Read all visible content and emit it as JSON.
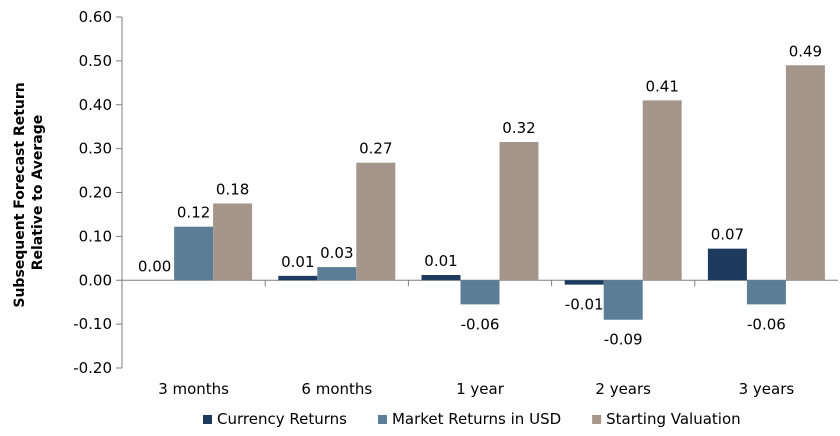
{
  "chart_data": {
    "type": "bar",
    "title": "",
    "ylabel": "Subsequent Forecast Return Relative to Average",
    "ylabel_lines": [
      "Subsequent Forecast Return",
      "Relative to Average"
    ],
    "xlabel": "",
    "ylim": [
      -0.2,
      0.6
    ],
    "y_ticks": [
      -0.2,
      -0.1,
      0.0,
      0.1,
      0.2,
      0.3,
      0.4,
      0.5,
      0.6
    ],
    "y_tick_labels": [
      "-0.20",
      "-0.10",
      "0.00",
      "0.10",
      "0.20",
      "0.30",
      "0.40",
      "0.50",
      "0.60"
    ],
    "grid": false,
    "legend_position": "bottom",
    "categories": [
      "3 months",
      "6 months",
      "1 year",
      "2 years",
      "3 years"
    ],
    "series": [
      {
        "name": "Currency Returns",
        "color": "#1f3a5f",
        "values": [
          0.0,
          0.01,
          0.012,
          -0.01,
          0.072
        ],
        "labels": [
          "0.00",
          "0.01",
          "0.01",
          "-0.01",
          "0.07"
        ]
      },
      {
        "name": "Market Returns in USD",
        "color": "#5b7e96",
        "values": [
          0.122,
          0.03,
          -0.055,
          -0.09,
          -0.055
        ],
        "labels": [
          "0.12",
          "0.03",
          "-0.06",
          "-0.09",
          "-0.06"
        ]
      },
      {
        "name": "Starting Valuation",
        "color": "#a4968a",
        "values": [
          0.175,
          0.268,
          0.315,
          0.41,
          0.49
        ],
        "labels": [
          "0.18",
          "0.27",
          "0.32",
          "0.41",
          "0.49"
        ]
      }
    ]
  }
}
